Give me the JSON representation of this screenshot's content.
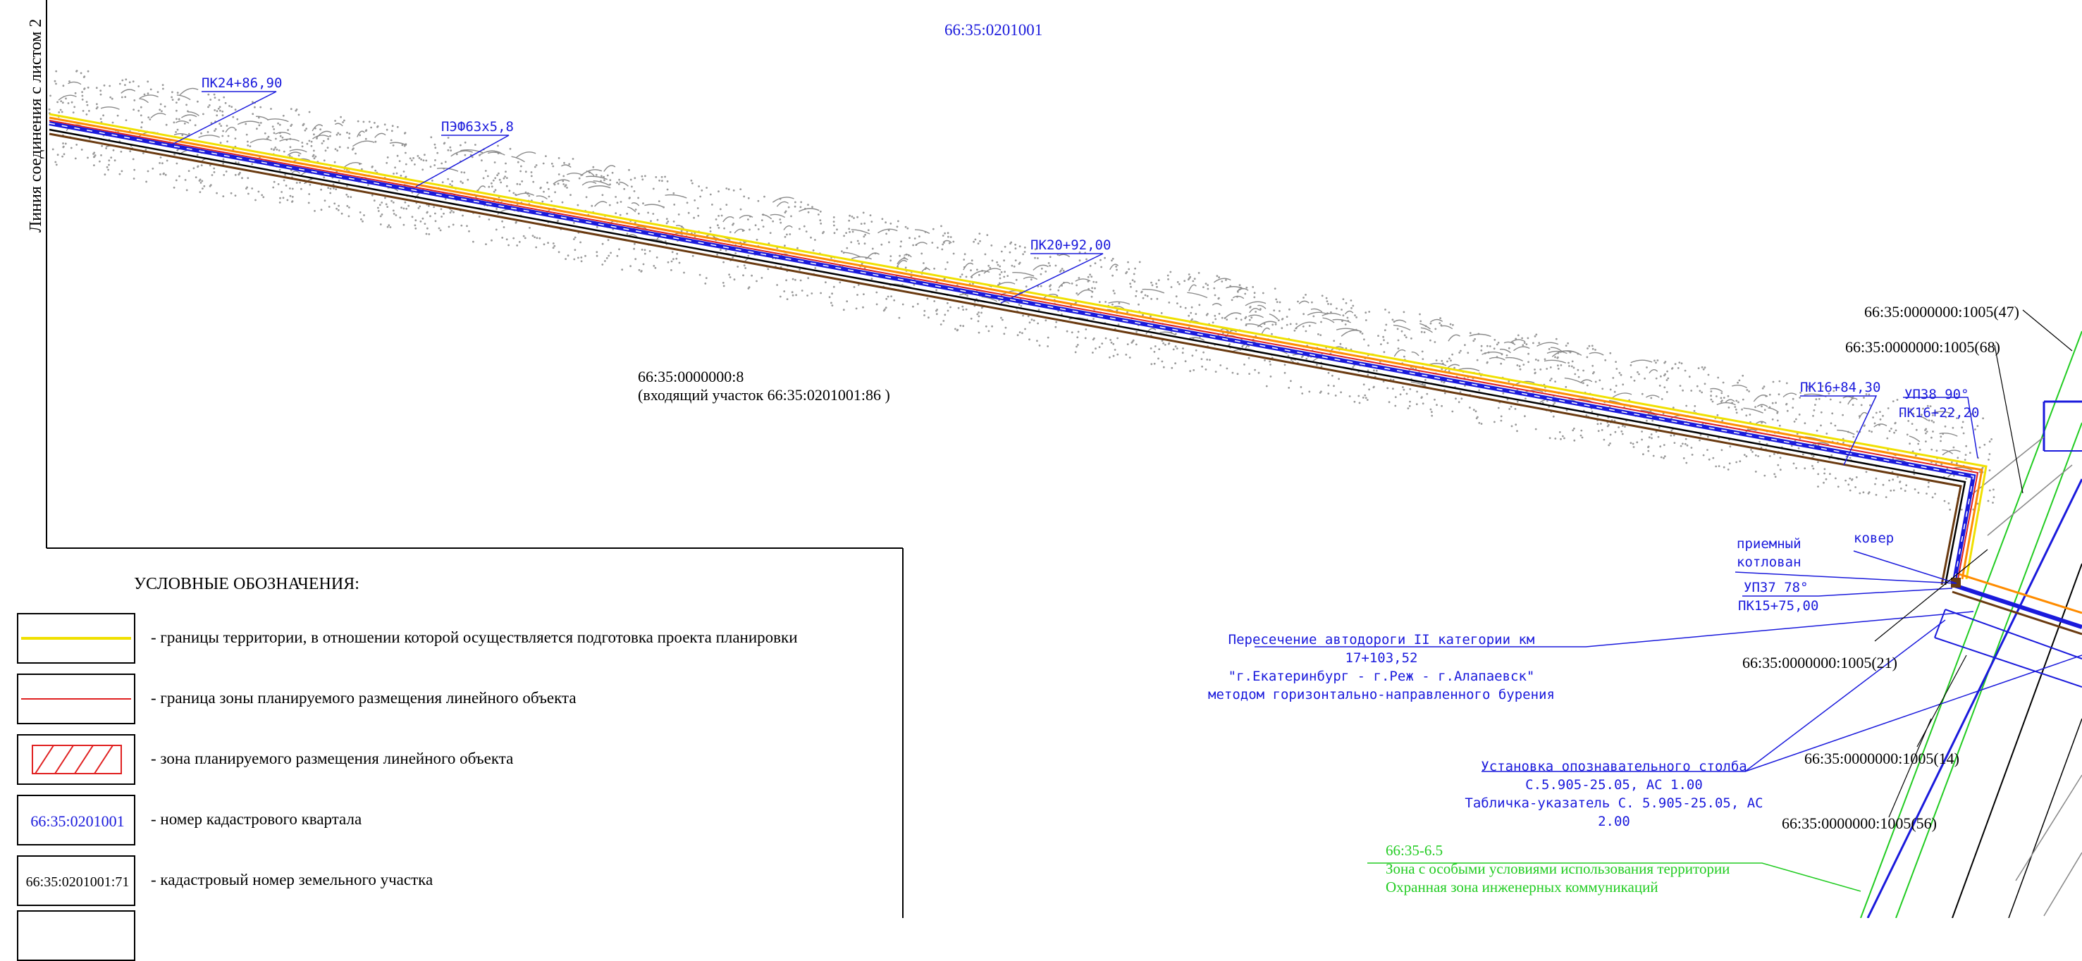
{
  "sheet": {
    "join_line_label": "Линия соединения с листом 2",
    "quarter_number": "66:35:0201001"
  },
  "pipeline": {
    "pk_a": "ПК24+86,90",
    "pipe": "ПЭФ63х5,8",
    "pk_b": "ПК20+92,00",
    "pk_c": "ПК16+84,30",
    "up38": "УП38 90°",
    "pk_d": "ПК16+22,20",
    "pit_line1": "приемный",
    "pit_line2": "котлован",
    "kover": "ковер",
    "up37": "УП37 78°",
    "pk_e": "ПК15+75,00"
  },
  "parcels": {
    "main": "66:35:0000000:8",
    "main_sub": "(входящий участок 66:35:0201001:86 )",
    "p47": "66:35:0000000:1005(47)",
    "p68": "66:35:0000000:1005(68)",
    "p21": "66:35:0000000:1005(21)",
    "p14": "66:35:0000000:1005(14)",
    "p56": "66:35:0000000:1005(56)"
  },
  "crossing": {
    "line1": "Пересечение автодороги II категории км",
    "line2": "17+103,52",
    "line3": "\"г.Екатеринбург - г.Реж - г.Алапаевск\"",
    "line4": "методом горизонтально-направленного бурения"
  },
  "post": {
    "line1": "Установка опознавательного столба",
    "line2": "С.5.905-25.05, АС 1.00",
    "line3": "Табличка-указатель С. 5.905-25.05, АС",
    "line4": "2.00"
  },
  "zone": {
    "code": "66:35-6.5",
    "line1": "Зона с особыми условиями использования территории",
    "line2": "Охранная зона инженерных коммуникаций"
  },
  "legend": {
    "title": "УСЛОВНЫЕ ОБОЗНАЧЕНИЯ:",
    "items": [
      {
        "text": "- границы территории, в отношении которой осуществляется подготовка проекта планировки"
      },
      {
        "text": "- граница зоны планируемого размещения линейного объекта"
      },
      {
        "text": "- зона планируемого размещения линейного объекта"
      },
      {
        "code": "66:35:0201001",
        "text": "- номер кадастрового квартала"
      },
      {
        "code": "66:35:0201001:71",
        "text": "- кадастровый номер земельного участка"
      }
    ]
  },
  "colors": {
    "blue": "#1a1adc",
    "red": "#e02020",
    "yellow": "#f0e000",
    "orange": "#ff8c00",
    "brown": "#6a3a10",
    "green": "#22cc22",
    "dots": "#9a9a9a"
  }
}
